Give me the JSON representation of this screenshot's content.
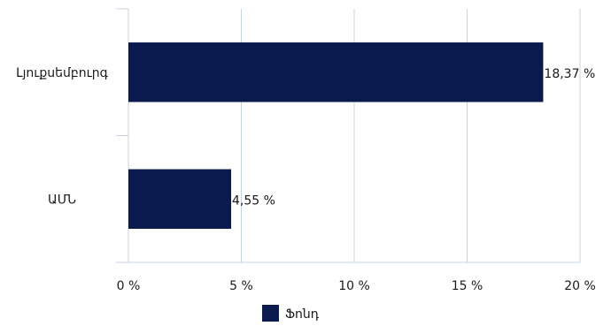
{
  "chart_data": {
    "type": "bar",
    "orientation": "horizontal",
    "categories": [
      "Լյուքսեմբուրգ",
      "ԱՄՆ"
    ],
    "series": [
      {
        "name": "Ֆոնդ",
        "values": [
          18.37,
          4.55
        ],
        "data_labels": [
          "18,37 %",
          "4,55 %"
        ],
        "color": "#0a1a4d"
      }
    ],
    "xlim": [
      0,
      20
    ],
    "x_ticks": [
      0,
      5,
      10,
      15,
      20
    ],
    "x_tick_labels": [
      "0 %",
      "5 %",
      "10 %",
      "15 %",
      "20 %"
    ],
    "grid": true,
    "legend_position": "bottom"
  }
}
